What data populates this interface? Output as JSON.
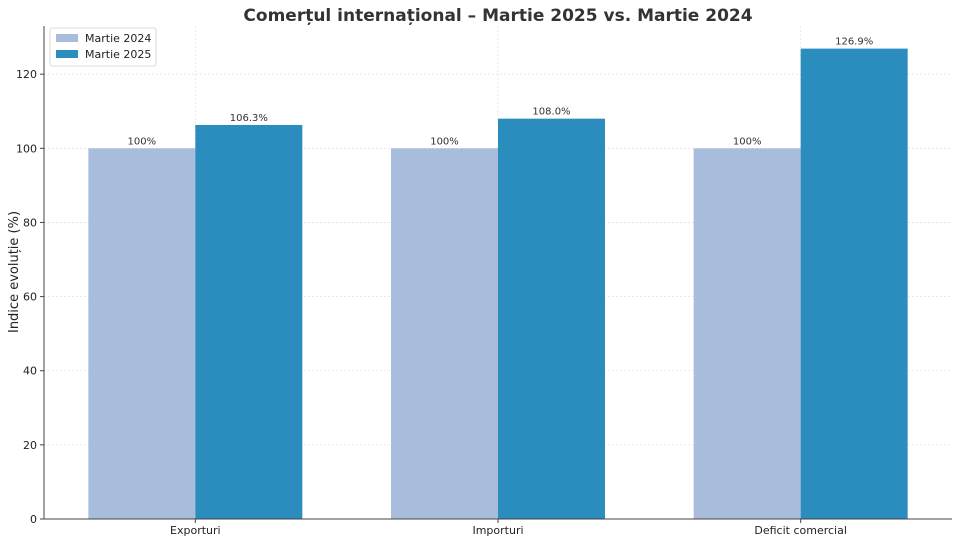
{
  "chart_data": {
    "type": "bar",
    "title": "Comerțul internațional – Martie 2025 vs. Martie 2024",
    "ylabel": "Indice evoluție (%)",
    "xlabel": "",
    "categories": [
      "Exporturi",
      "Importuri",
      "Deficit comercial"
    ],
    "series": [
      {
        "name": "Martie 2024",
        "values": [
          100,
          100,
          100
        ],
        "labels": [
          "100%",
          "100%",
          "100%"
        ],
        "color": "#a8bcdb"
      },
      {
        "name": "Martie 2025",
        "values": [
          106.3,
          108.0,
          126.9
        ],
        "labels": [
          "106.3%",
          "108.0%",
          "126.9%"
        ],
        "color": "#2b8cbe"
      }
    ],
    "ylim": [
      0,
      133
    ],
    "yticks": [
      0,
      20,
      40,
      60,
      80,
      100,
      120
    ],
    "grid": true,
    "legend": "top-left"
  }
}
